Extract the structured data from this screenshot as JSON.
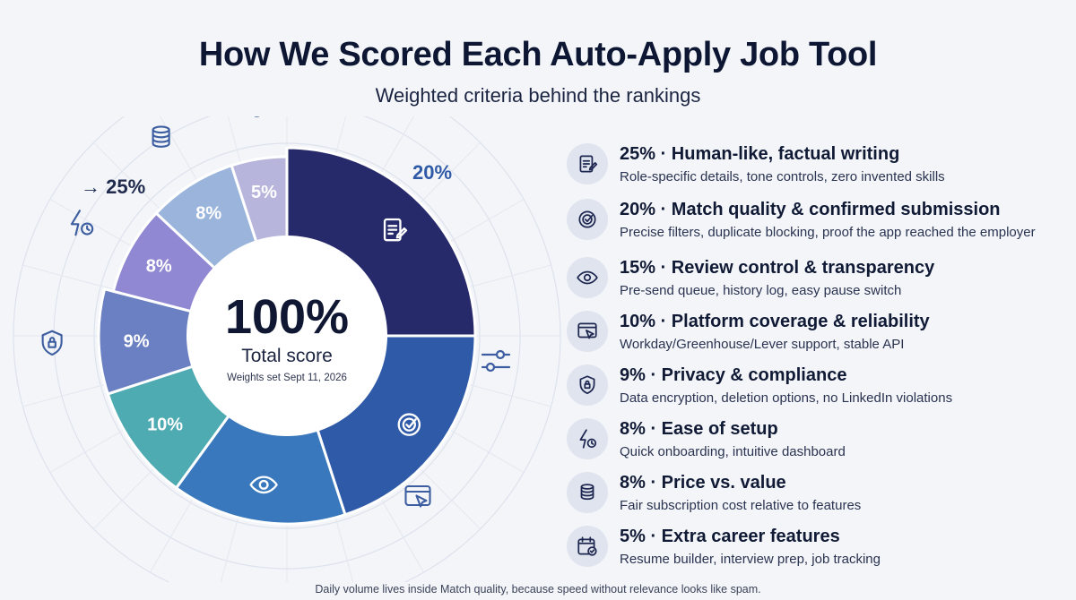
{
  "header": {
    "title": "How We Scored Each Auto-Apply Job Tool",
    "subtitle": "Weighted criteria behind the rankings"
  },
  "center": {
    "value": "100%",
    "label": "Total score",
    "note": "Weights set Sept 11, 2026"
  },
  "outer_labels": [
    "→ 25%",
    "20%"
  ],
  "chart_data": {
    "type": "pie",
    "variant": "donut",
    "series": [
      {
        "label": "25%",
        "value": 25,
        "color": "#262a6b",
        "icon": "document-edit-icon"
      },
      {
        "label": "20%",
        "value": 20,
        "color": "#2f5aa7",
        "icon": "target-check-icon"
      },
      {
        "label": "15%",
        "value": 15,
        "color": "#3978bd",
        "icon": "eye-icon"
      },
      {
        "label": "10%",
        "value": 10,
        "color": "#4fabb2",
        "icon": "browser-cursor-icon"
      },
      {
        "label": "9%",
        "value": 9,
        "color": "#6a80c2",
        "icon": "shield-lock-icon"
      },
      {
        "label": "8%",
        "value": 8,
        "color": "#9088d2",
        "icon": "bolt-clock-icon"
      },
      {
        "label": "8%",
        "value": 8,
        "color": "#9ab4dc",
        "icon": "coins-icon"
      },
      {
        "label": "5%",
        "value": 5,
        "color": "#b8b5dc",
        "icon": "calendar-check-icon"
      }
    ]
  },
  "criteria": [
    {
      "heading": "25% · Human-like, factual writing",
      "desc": "Role-specific details, tone controls, zero invented skills",
      "icon": "document-edit-icon"
    },
    {
      "heading": "20% · Match quality & confirmed submission",
      "desc": "Precise filters, duplicate blocking, proof the app reached the employer",
      "icon": "target-check-icon"
    },
    {
      "heading": "15% · Review control & transparency",
      "desc": "Pre-send queue, history log, easy pause switch",
      "icon": "eye-icon"
    },
    {
      "heading": "10% · Platform coverage & reliability",
      "desc": "Workday/Greenhouse/Lever support, stable API",
      "icon": "browser-cursor-icon"
    },
    {
      "heading": "9% · Privacy & compliance",
      "desc": "Data encryption, deletion options, no LinkedIn violations",
      "icon": "shield-lock-icon"
    },
    {
      "heading": "8% · Ease of setup",
      "desc": "Quick onboarding, intuitive dashboard",
      "icon": "bolt-clock-icon"
    },
    {
      "heading": "8% · Price vs. value",
      "desc": "Fair subscription cost relative to features",
      "icon": "coins-icon"
    },
    {
      "heading": "5% · Extra career features",
      "desc": "Resume builder, interview prep, job tracking",
      "icon": "calendar-check-icon"
    }
  ],
  "footer": "Daily volume lives inside Match quality, because speed without relevance looks like spam."
}
